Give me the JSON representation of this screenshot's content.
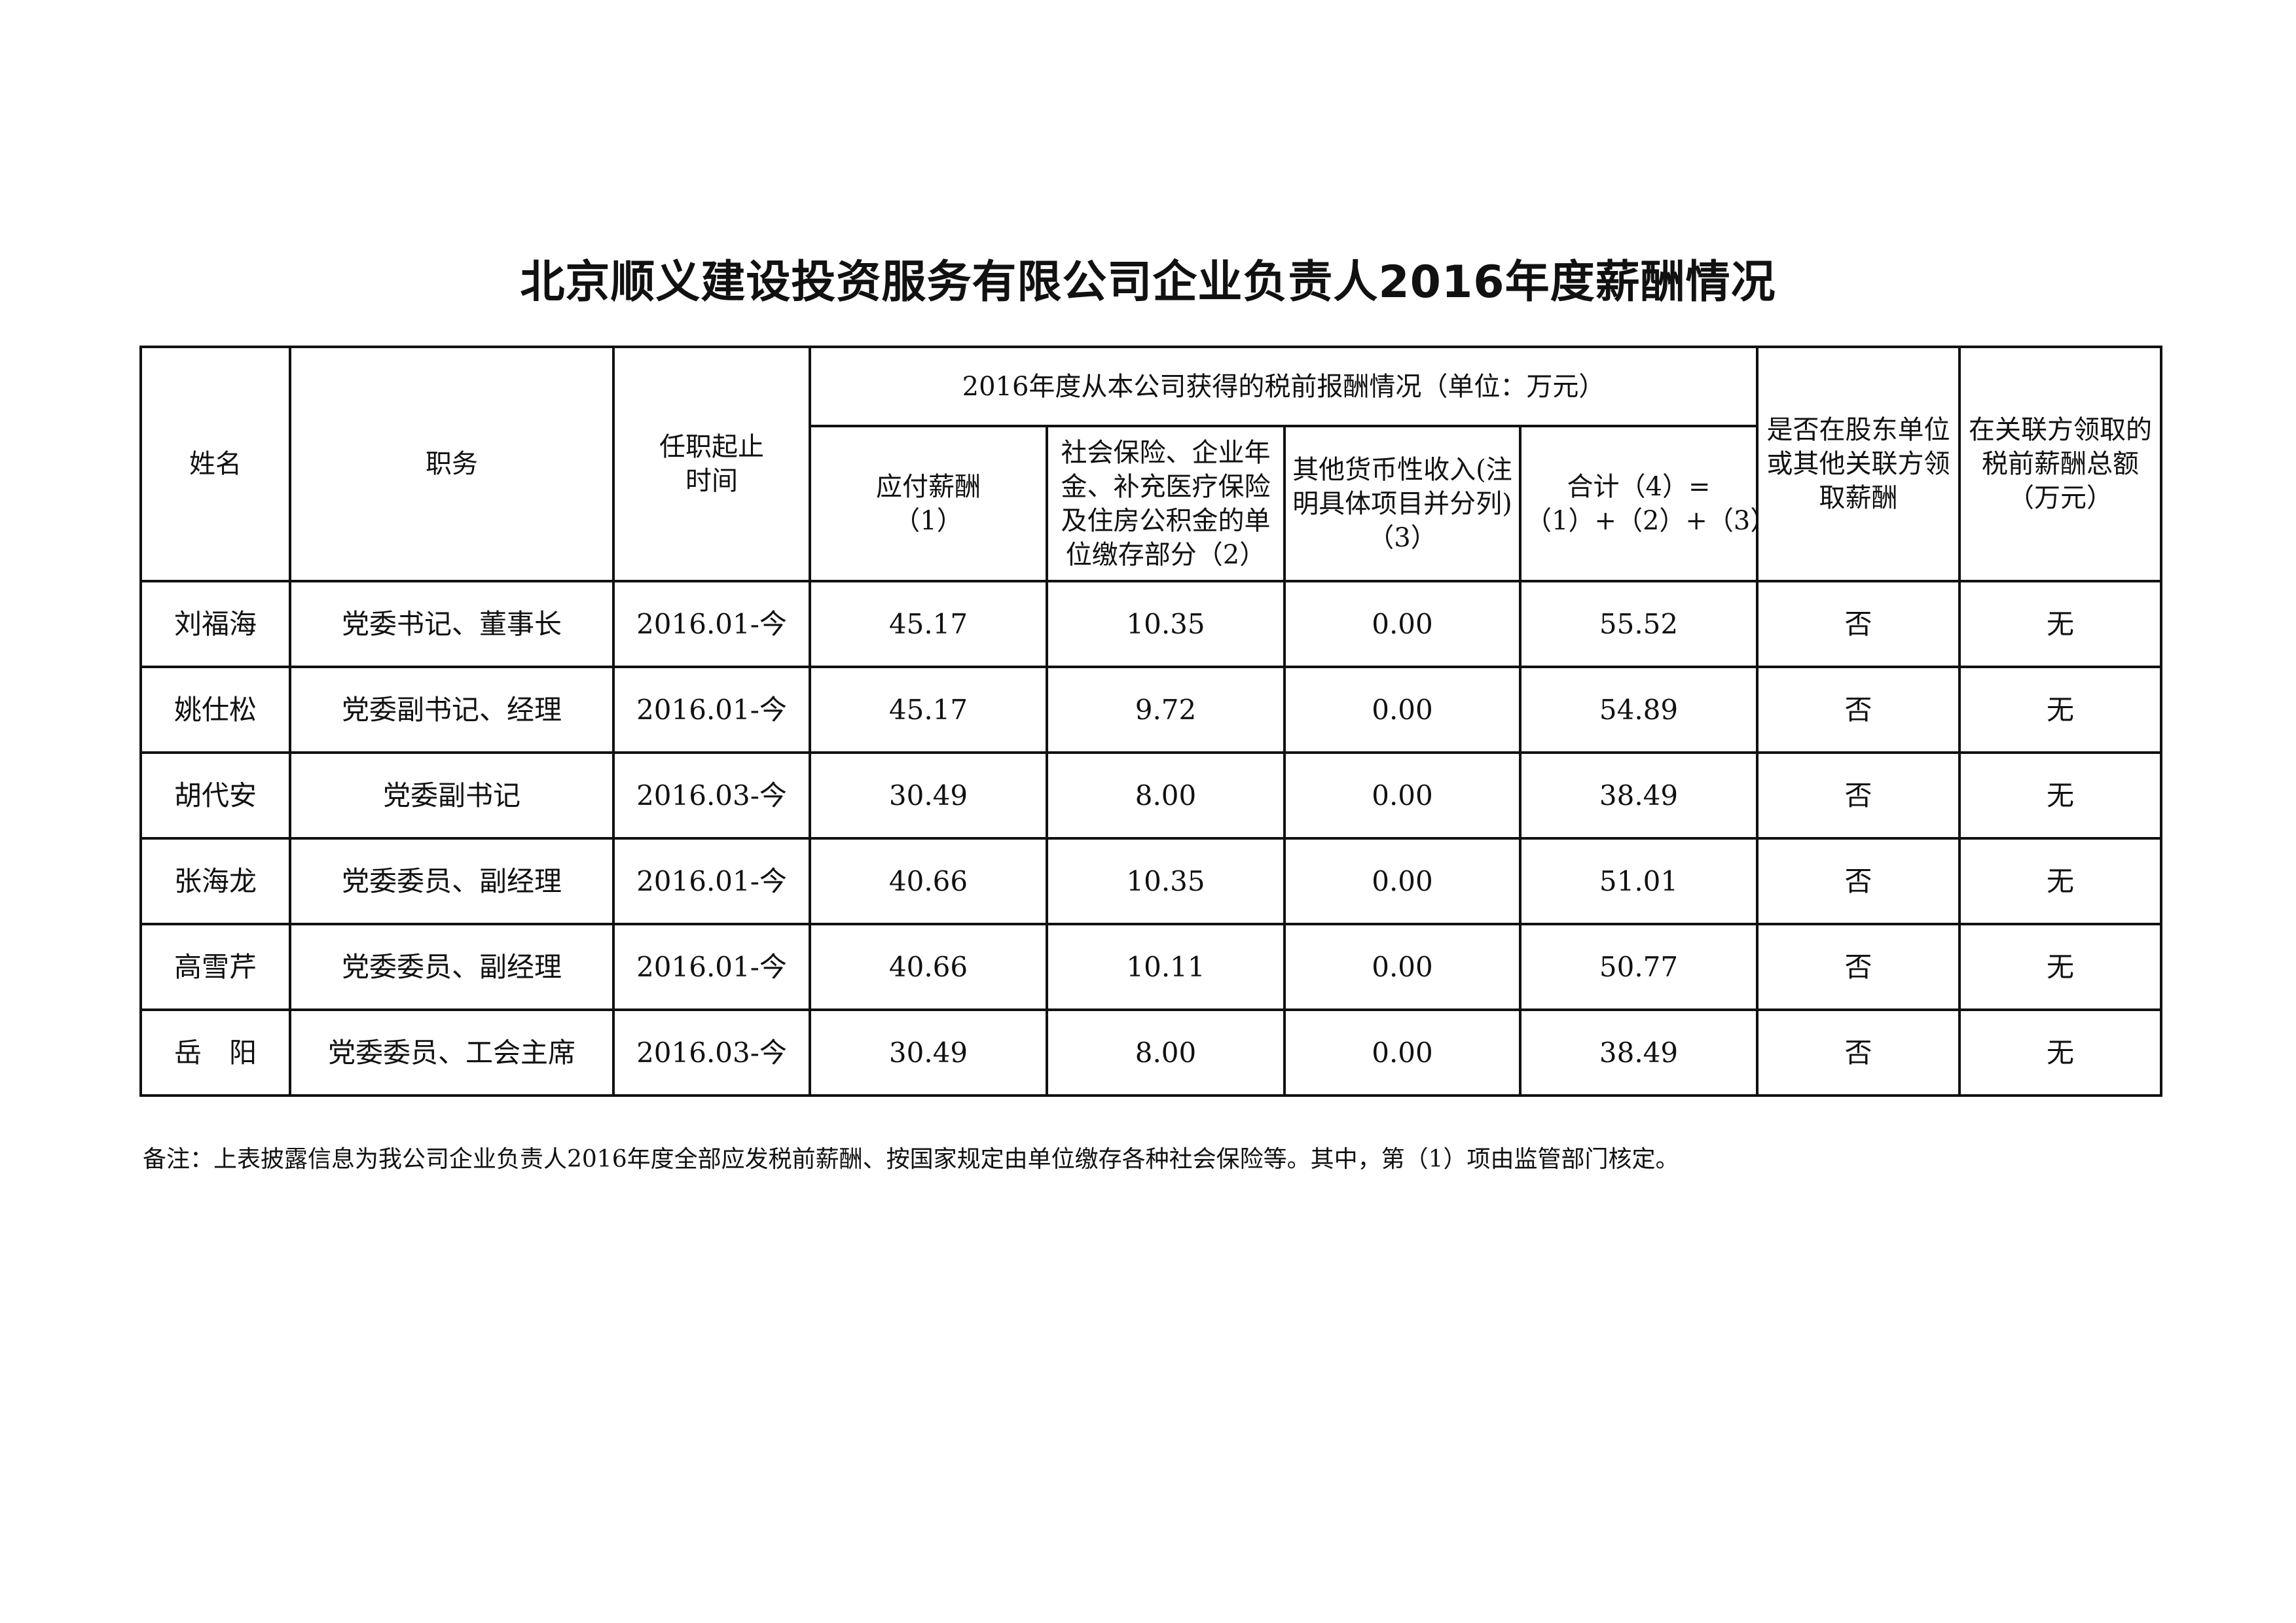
{
  "title": "北京顺义建设投资服务有限公司企业负责人2016年度薪酬情况",
  "headers": {
    "name": "姓名",
    "position": "职务",
    "term": "任职起止时间",
    "group": "2016年度从本公司获得的税前报酬情况（单位：万元）",
    "salary": "应付薪酬（1）",
    "insurance": "社会保险、企业年金、补充医疗保险及住房公积金的单位缴存部分（2）",
    "other": "其他货币性收入(注明具体项目并分列)（3）",
    "total": "合计（4）=（1）+（2）+（3）",
    "shareholder": "是否在股东单位或其他关联方领取薪酬",
    "related": "在关联方领取的税前薪酬总额（万元）"
  },
  "rows": [
    {
      "name": "刘福海",
      "position": "党委书记、董事长",
      "term": "2016.01-今",
      "salary": "45.17",
      "insurance": "10.35",
      "other": "0.00",
      "total": "55.52",
      "shareholder": "否",
      "related": "无"
    },
    {
      "name": "姚仕松",
      "position": "党委副书记、经理",
      "term": "2016.01-今",
      "salary": "45.17",
      "insurance": "9.72",
      "other": "0.00",
      "total": "54.89",
      "shareholder": "否",
      "related": "无"
    },
    {
      "name": "胡代安",
      "position": "党委副书记",
      "term": "2016.03-今",
      "salary": "30.49",
      "insurance": "8.00",
      "other": "0.00",
      "total": "38.49",
      "shareholder": "否",
      "related": "无"
    },
    {
      "name": "张海龙",
      "position": "党委委员、副经理",
      "term": "2016.01-今",
      "salary": "40.66",
      "insurance": "10.35",
      "other": "0.00",
      "total": "51.01",
      "shareholder": "否",
      "related": "无"
    },
    {
      "name": "高雪芹",
      "position": "党委委员、副经理",
      "term": "2016.01-今",
      "salary": "40.66",
      "insurance": "10.11",
      "other": "0.00",
      "total": "50.77",
      "shareholder": "否",
      "related": "无"
    },
    {
      "name": "岳　阳",
      "position": "党委委员、工会主席",
      "term": "2016.03-今",
      "salary": "30.49",
      "insurance": "8.00",
      "other": "0.00",
      "total": "38.49",
      "shareholder": "否",
      "related": "无"
    }
  ],
  "note": "备注：上表披露信息为我公司企业负责人2016年度全部应发税前薪酬、按国家规定由单位缴存各种社会保险等。其中，第（1）项由监管部门核定。"
}
